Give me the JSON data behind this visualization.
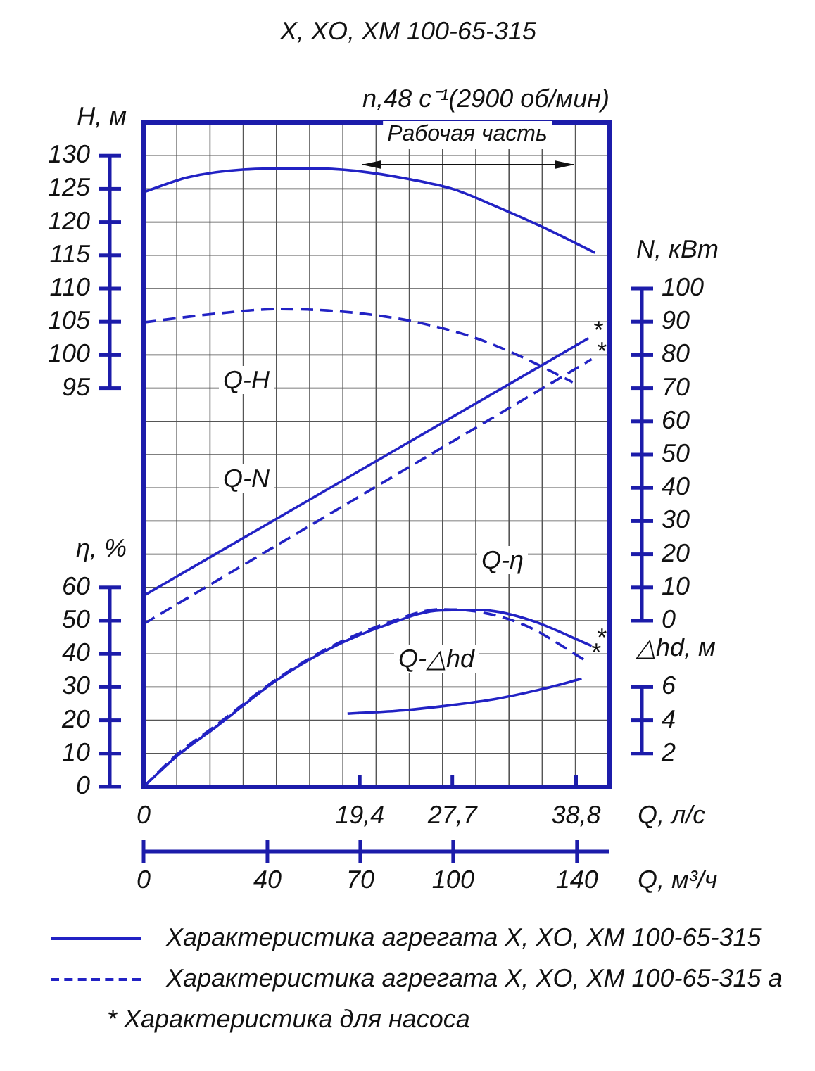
{
  "chart_data": [
    {
      "type": "line",
      "title": "X, XO, XM 100-65-315",
      "subtitle": "n,48 с⁻¹(2900 об/мин)",
      "ylabel": "H, м",
      "y2label": "N, кВт",
      "xlim": [
        0,
        41.8
      ],
      "tick_labels": "y",
      "ylim": [
        35,
        135
      ],
      "yticks": [
        95,
        100,
        105,
        110,
        115,
        120,
        125,
        130
      ],
      "y2lim": [
        -50,
        150
      ],
      "y2ticks": [
        0,
        10,
        20,
        30,
        40,
        50,
        60,
        70,
        80,
        90,
        100
      ],
      "grid": true,
      "legend": "bottom",
      "series": [
        {
          "name": "Характеристика агрегата X, XO, XM 100-65-315",
          "color": "#2222c4",
          "line_style": "solid",
          "x": [
            0,
            3.9,
            8.9,
            14.9,
            19.1,
            23.7,
            27.9,
            31.7,
            36,
            40.5
          ],
          "values": [
            124.5,
            126.7,
            127.9,
            128.1,
            127.7,
            126.5,
            124.9,
            122.3,
            119.1,
            115.4
          ]
        },
        {
          "name": "Характеристика агрегата X, XO, XM 100-65-315 а",
          "color": "#2222c4",
          "line_style": "dashed",
          "x": [
            0,
            6.4,
            12,
            16.5,
            21.6,
            25.4,
            29.7,
            33.8,
            38.5
          ],
          "values": [
            104.9,
            106.2,
            106.9,
            106.7,
            105.8,
            104.6,
            102.6,
            99.8,
            95.9
          ]
        },
        {
          "color": "#2222c4",
          "line_style": "solid",
          "axis": "y2",
          "x": [
            0,
            39.9
          ],
          "values": [
            7.5,
            85
          ],
          "value_labels": [
            null,
            "*"
          ]
        },
        {
          "color": "#2222c4",
          "line_style": "dashed",
          "axis": "y2",
          "x": [
            0,
            40.2
          ],
          "values": [
            -1,
            78.7
          ],
          "value_labels": [
            null,
            "*"
          ]
        }
      ],
      "annotations": [
        "Рабочая часть",
        "Q-H",
        "Q-N",
        "* Характеристика для насоса"
      ]
    },
    {
      "type": "line",
      "xlabel": "Q, л/с",
      "x2label": "Q, м³/ч",
      "ylabel": "η, %",
      "y2label": "△hd, м",
      "xlim": [
        0,
        41.8
      ],
      "xticks": [
        0,
        {
          "value": 19.4,
          "label": "19,4"
        },
        {
          "value": 27.7,
          "label": "27,7"
        },
        {
          "value": 38.8,
          "label": "38,8"
        }
      ],
      "x2lim": [
        0,
        150.5
      ],
      "x2ticks": [
        0,
        40,
        70,
        100,
        140
      ],
      "ylim": [
        0,
        200
      ],
      "yticks": [
        0,
        10,
        20,
        30,
        40,
        50,
        60
      ],
      "y2lim": [
        0,
        40
      ],
      "y2ticks": [
        2,
        4,
        6
      ],
      "series": [
        {
          "color": "#2222c4",
          "line_style": "solid",
          "x": [
            0,
            3.1,
            6.5,
            12,
            16.6,
            21.6,
            26.7,
            30.1,
            34.3,
            40.2
          ],
          "values": [
            0,
            9.5,
            18,
            32.2,
            41.4,
            48.5,
            53.1,
            53.2,
            50.6,
            42.4
          ],
          "value_labels": [
            null,
            null,
            null,
            null,
            null,
            null,
            null,
            null,
            null,
            "*"
          ]
        },
        {
          "color": "#2222c4",
          "line_style": "dashed",
          "x": [
            0,
            3.1,
            6.5,
            12,
            16.6,
            21.6,
            26.7,
            30.1,
            34.3,
            39.7
          ],
          "values": [
            0,
            10,
            18.5,
            32.5,
            41.8,
            49,
            53.4,
            52.6,
            48.5,
            37.9
          ],
          "value_labels": [
            null,
            null,
            null,
            null,
            null,
            null,
            null,
            null,
            null,
            "*"
          ]
        },
        {
          "color": "#2222c4",
          "line_style": "solid",
          "axis": "y2",
          "x": [
            18.3,
            23.3,
            27.5,
            31.7,
            35.9,
            39.3
          ],
          "values": [
            4.4,
            4.6,
            4.9,
            5.3,
            5.9,
            6.5
          ]
        }
      ],
      "annotations": [
        "Q-η",
        "Q-△hd"
      ]
    }
  ]
}
